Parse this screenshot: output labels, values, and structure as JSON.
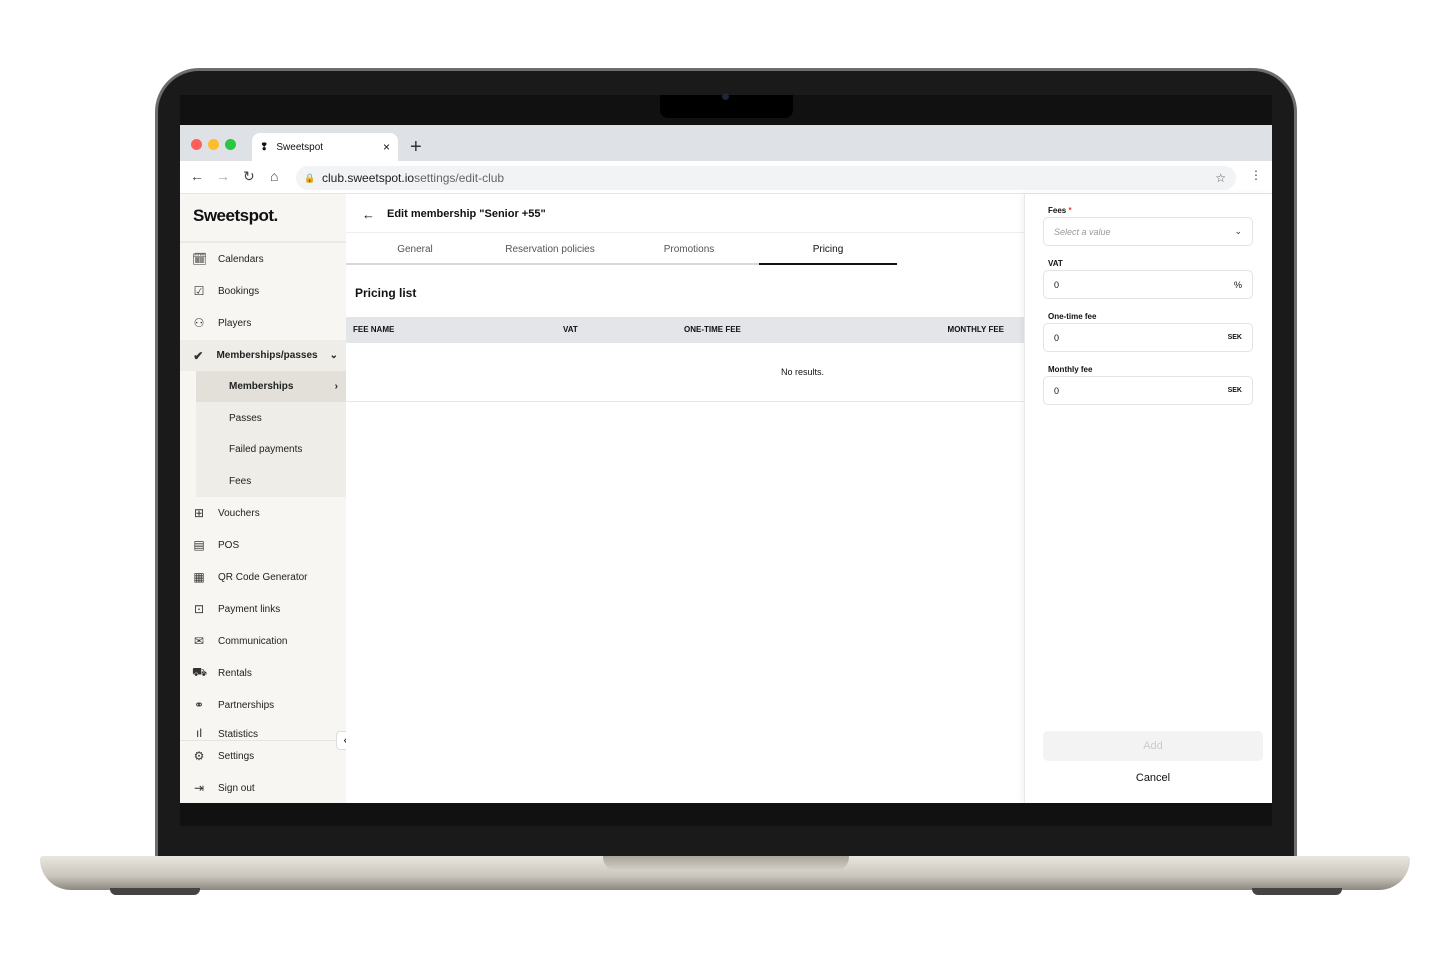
{
  "browser": {
    "tab_title": "Sweetspot",
    "url_host": "club.sweetspot.io",
    "url_path": "settings/edit-club",
    "new_tab": "+",
    "close": "×"
  },
  "sidebar": {
    "logo": "Sweetspot.",
    "items": [
      {
        "label": "Calendars",
        "icon": "calendar-stack-icon"
      },
      {
        "label": "Bookings",
        "icon": "calendar-check-icon"
      },
      {
        "label": "Players",
        "icon": "users-icon"
      },
      {
        "label": "Memberships/passes",
        "icon": "badge-check-icon",
        "expanded": true
      },
      {
        "label": "Vouchers",
        "icon": "gift-icon"
      },
      {
        "label": "POS",
        "icon": "register-icon"
      },
      {
        "label": "QR Code Generator",
        "icon": "qr-icon"
      },
      {
        "label": "Payment links",
        "icon": "money-icon"
      },
      {
        "label": "Communication",
        "icon": "mail-icon"
      },
      {
        "label": "Rentals",
        "icon": "cart-icon"
      },
      {
        "label": "Partnerships",
        "icon": "handshake-icon"
      },
      {
        "label": "Statistics",
        "icon": "chart-icon"
      }
    ],
    "subitems": [
      {
        "label": "Memberships",
        "active": true
      },
      {
        "label": "Passes"
      },
      {
        "label": "Failed payments"
      },
      {
        "label": "Fees"
      }
    ],
    "settings": "Settings",
    "signout": "Sign out"
  },
  "header": {
    "title": "Edit membership \"Senior +55\""
  },
  "tabs": [
    {
      "label": "General"
    },
    {
      "label": "Reservation policies"
    },
    {
      "label": "Promotions"
    },
    {
      "label": "Pricing",
      "active": true
    }
  ],
  "pricing": {
    "title": "Pricing list",
    "columns": [
      "FEE NAME",
      "VAT",
      "ONE-TIME FEE",
      "MONTHLY FEE"
    ],
    "empty": "No results."
  },
  "panel": {
    "fees_label": "Fees",
    "required": "*",
    "fees_placeholder": "Select a value",
    "vat_label": "VAT",
    "vat_value": "0",
    "vat_unit": "%",
    "onetime_label": "One-time fee",
    "onetime_value": "0",
    "onetime_unit": "SEK",
    "monthly_label": "Monthly fee",
    "monthly_value": "0",
    "monthly_unit": "SEK",
    "add": "Add",
    "cancel": "Cancel"
  }
}
